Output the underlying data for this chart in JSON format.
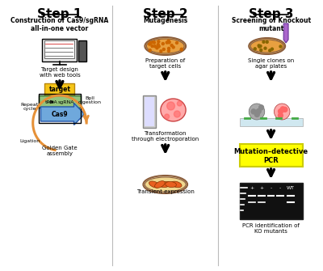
{
  "bg_color": "#ffffff",
  "fig_width": 4.0,
  "fig_height": 3.35,
  "dpi": 100,
  "step1_title": "Step 1",
  "step1_subtitle": "Construction of Cas9/sgRNA\nall-in-one vector",
  "step2_title": "Step 2",
  "step2_subtitle": "Mutagenesis",
  "step3_title": "Step 3",
  "step3_subtitle": "Screening of Knockout\nmutant",
  "step1_texts": [
    "Target design\nwith web tools",
    "Golden Gate\nassembly",
    "Repeat\ncycle",
    "Ligation",
    "BpII\ndigestion"
  ],
  "step2_texts": [
    "Preparation of\ntarget cells",
    "Transformation\nthrough electroporation",
    "Transient expression"
  ],
  "step3_texts": [
    "Single clones on\nagar plates",
    "Mutation–detective\nPCR",
    "PCR identification of\nKO mutants"
  ],
  "cas9_label": "Cas9",
  "trna_label": "tRNA",
  "sgrna_label": "sgRNA",
  "target_label": "target",
  "target_color": "#f5c518",
  "cas9_color": "#6fa8dc",
  "trna_sgrna_color": "#93c47d",
  "mut_det_color": "#ffff00",
  "arrow_color": "#000000",
  "orange_color": "#e69138",
  "step_underline": true,
  "divider_color": "#cccccc"
}
